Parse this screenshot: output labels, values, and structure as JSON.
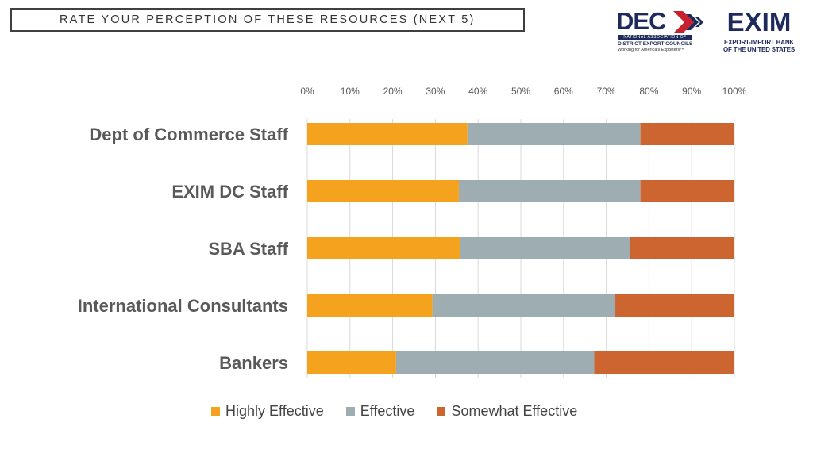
{
  "title": "RATE YOUR PERCEPTION OF THESE RESOURCES (NEXT 5)",
  "logos": {
    "dec": {
      "word": "DEC",
      "bar_text": "NATIONAL ASSOCIATION OF",
      "subtitle": "DISTRICT EXPORT COUNCILS",
      "tagline": "Working for America's Exporters™"
    },
    "exim": {
      "word": "EXIM",
      "line1": "EXPORT-IMPORT BANK",
      "line2": "OF THE UNITED STATES"
    }
  },
  "colors": {
    "highly_effective": "#F5A31F",
    "effective": "#9EADB2",
    "somewhat_effective": "#CD6530"
  },
  "chart_data": {
    "type": "bar",
    "orientation": "horizontal",
    "stacked": "percent",
    "title": "",
    "xlabel": "",
    "ylabel": "",
    "xlim": [
      0,
      100
    ],
    "x_ticks": [
      "0%",
      "10%",
      "20%",
      "30%",
      "40%",
      "50%",
      "60%",
      "70%",
      "80%",
      "90%",
      "100%"
    ],
    "x_axis_position": "top",
    "grid": "vertical",
    "categories": [
      "Dept of Commerce Staff",
      "EXIM DC Staff",
      "SBA Staff",
      "International Consultants",
      "Bankers"
    ],
    "series": [
      {
        "name": "Highly Effective",
        "values": [
          37.5,
          35.5,
          35.7,
          29.3,
          20.8
        ]
      },
      {
        "name": "Effective",
        "values": [
          40.5,
          42.5,
          39.8,
          42.7,
          46.4
        ]
      },
      {
        "name": "Somewhat Effective",
        "values": [
          22.0,
          22.0,
          24.5,
          28.0,
          32.8
        ]
      }
    ],
    "legend": [
      "Highly Effective",
      "Effective",
      "Somewhat Effective"
    ],
    "legend_position": "bottom"
  }
}
